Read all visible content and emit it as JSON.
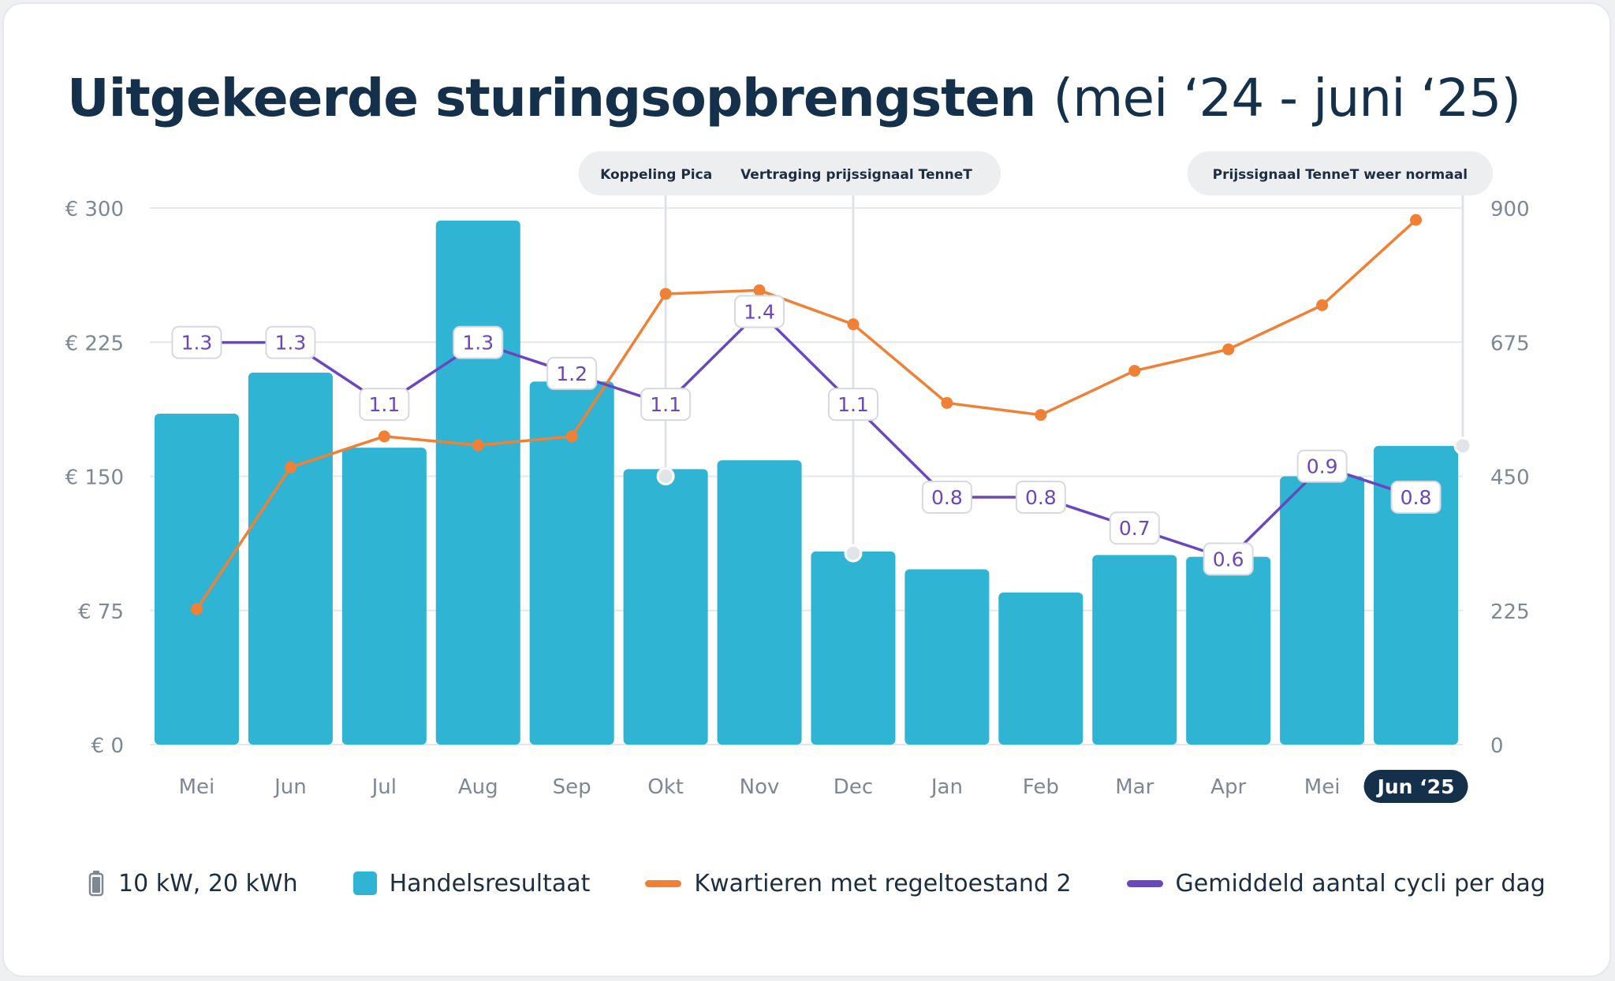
{
  "title": {
    "main": "Uitgekeerde sturingsopbrengsten",
    "period": "(mei ‘24 - juni ‘25)"
  },
  "colors": {
    "bar": "#30b4d4",
    "orange": "#f08035",
    "purple": "#6a47bd",
    "title": "#14304a",
    "axis_text": "#7d8894",
    "grid": "#e4e7ea",
    "active_label_bg": "#14304a"
  },
  "legend": {
    "battery_icon": "battery-icon",
    "battery_label": "10 kW, 20 kWh",
    "bar_label": "Handelsresultaat",
    "orange_label": "Kwartieren met regeltoestand 2",
    "purple_label": "Gemiddeld aantal cycli per dag"
  },
  "chart_data": {
    "type": "bar",
    "categories": [
      "Mei",
      "Jun",
      "Jul",
      "Aug",
      "Sep",
      "Okt",
      "Nov",
      "Dec",
      "Jan",
      "Feb",
      "Mar",
      "Apr",
      "Mei",
      "Jun ‘25"
    ],
    "active_category_index": 13,
    "y_left": {
      "ticks": [
        "€ 300",
        "€ 225",
        "€ 150",
        "€ 75",
        "€ 0"
      ],
      "lim": [
        0,
        300
      ]
    },
    "y_right": {
      "ticks": [
        "900",
        "675",
        "450",
        "225",
        "0"
      ],
      "lim": [
        0,
        900
      ]
    },
    "grid": true,
    "series": [
      {
        "name": "Handelsresultaat",
        "type": "bar",
        "axis": "left",
        "values": [
          185,
          208,
          166,
          293,
          203,
          154,
          159,
          108,
          98,
          85,
          106,
          105,
          150,
          167
        ]
      },
      {
        "name": "Kwartieren met regeltoestand 2",
        "type": "line",
        "axis": "right",
        "values": [
          227,
          465,
          517,
          502,
          517,
          756,
          762,
          705,
          573,
          553,
          627,
          663,
          737,
          880
        ]
      },
      {
        "name": "Gemiddeld aantal cycli per dag",
        "type": "line",
        "labels_only_scale": true,
        "values": [
          1.3,
          1.3,
          1.1,
          1.3,
          1.2,
          1.1,
          1.4,
          1.1,
          0.8,
          0.8,
          0.7,
          0.6,
          0.9,
          0.8
        ],
        "labels": [
          "1.3",
          "1.3",
          "1.1",
          "1.3",
          "1.2",
          "1.1",
          "1.4",
          "1.1",
          "0.8",
          "0.8",
          "0.7",
          "0.6",
          "0.9",
          "0.8"
        ]
      }
    ],
    "annotations": [
      {
        "text": "Koppeling Picasso",
        "category_index": 5,
        "at_value": 150
      },
      {
        "text": "Vertraging prijssignaal TenneT",
        "category_index": 7,
        "at_value": 107
      },
      {
        "text": "Prijssignaal TenneT weer normaal",
        "category_index": 13.5,
        "at_value": 167
      }
    ]
  }
}
